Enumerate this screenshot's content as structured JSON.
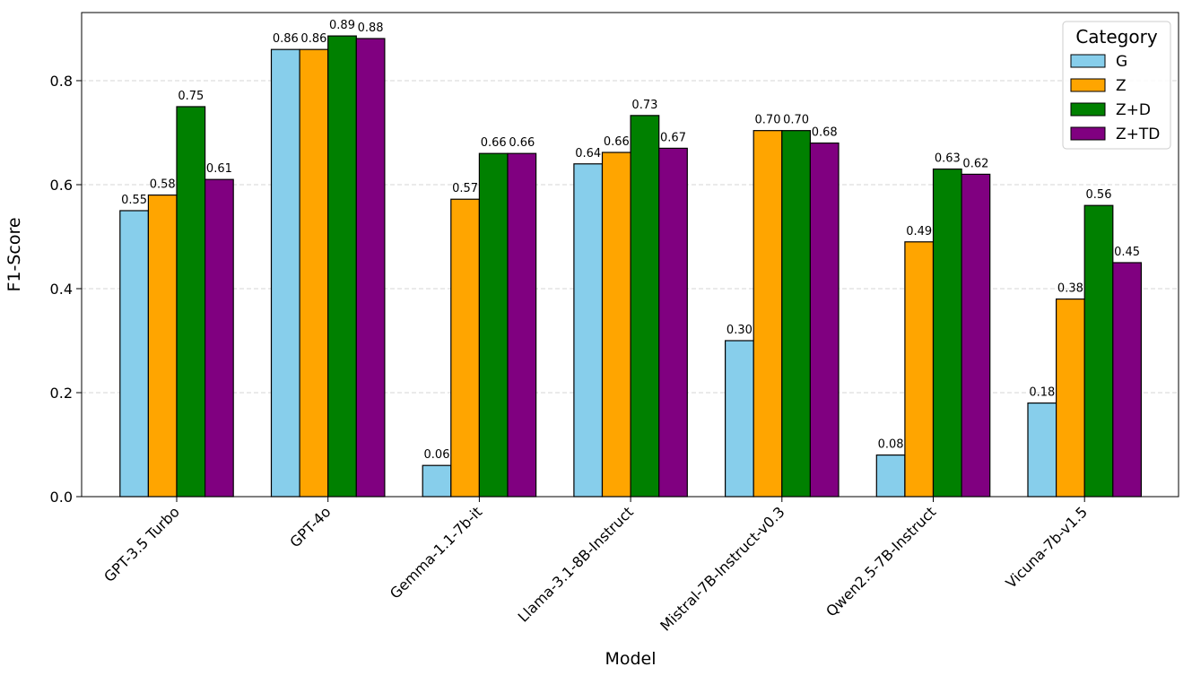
{
  "chart_data": {
    "type": "bar",
    "x_label": "Model",
    "y_label": "F1-Score",
    "categories": [
      "GPT-3.5 Turbo",
      "GPT-4o",
      "Gemma-1.1-7b-it",
      "Llama-3.1-8B-Instruct",
      "Mistral-7B-Instruct-v0.3",
      "Qwen2.5-7B-Instruct",
      "Vicuna-7b-v1.5"
    ],
    "series": [
      {
        "name": "G",
        "color": "#87ceeb",
        "values": [
          0.55,
          0.86,
          0.06,
          0.64,
          0.3,
          0.08,
          0.18
        ],
        "value_labels": [
          "0.55",
          "0.86",
          "0.06",
          "0.64",
          "0.30",
          "0.08",
          "0.18"
        ]
      },
      {
        "name": "Z",
        "color": "#ffa500",
        "values": [
          0.58,
          0.86,
          0.572,
          0.662,
          0.704,
          0.49,
          0.38
        ],
        "value_labels": [
          "0.58",
          "0.86",
          "0.57",
          "0.66",
          "0.70",
          "0.49",
          "0.38"
        ]
      },
      {
        "name": "Z+D",
        "color": "#008000",
        "values": [
          0.75,
          0.886,
          0.66,
          0.733,
          0.704,
          0.63,
          0.56
        ],
        "value_labels": [
          "0.75",
          "0.89",
          "0.66",
          "0.73",
          "0.70",
          "0.63",
          "0.56"
        ]
      },
      {
        "name": "Z+TD",
        "color": "#800080",
        "values": [
          0.61,
          0.881,
          0.66,
          0.67,
          0.68,
          0.62,
          0.45
        ],
        "value_labels": [
          "0.61",
          "0.88",
          "0.66",
          "0.67",
          "0.68",
          "0.62",
          "0.45"
        ]
      }
    ],
    "ylim": [
      0,
      0.931
    ],
    "yticks": [
      {
        "value": 0,
        "label": "0.0"
      },
      0.2,
      0.4,
      0.6,
      0.8
    ],
    "grid": true,
    "legend": {
      "title": "Category",
      "position": "upper right"
    }
  }
}
